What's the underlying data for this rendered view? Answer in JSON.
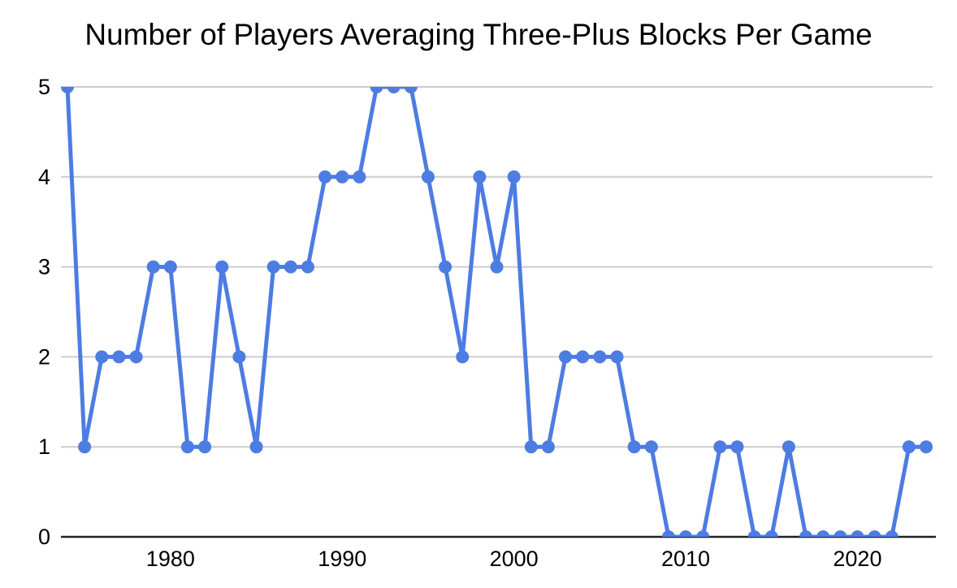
{
  "chart_data": {
    "type": "line",
    "title": "Number of Players Averaging Three-Plus Blocks Per Game",
    "xlabel": "",
    "ylabel": "",
    "x": [
      1974,
      1975,
      1976,
      1977,
      1978,
      1979,
      1980,
      1981,
      1982,
      1983,
      1984,
      1985,
      1986,
      1987,
      1988,
      1989,
      1990,
      1991,
      1992,
      1993,
      1994,
      1995,
      1996,
      1997,
      1998,
      1999,
      2000,
      2001,
      2002,
      2003,
      2004,
      2005,
      2006,
      2007,
      2008,
      2009,
      2010,
      2011,
      2012,
      2013,
      2014,
      2015,
      2016,
      2017,
      2018,
      2019,
      2020,
      2021,
      2022,
      2023,
      2024
    ],
    "values": [
      5,
      1,
      2,
      2,
      2,
      3,
      3,
      1,
      1,
      3,
      2,
      1,
      3,
      3,
      3,
      4,
      4,
      4,
      5,
      5,
      5,
      4,
      3,
      2,
      4,
      3,
      4,
      1,
      1,
      2,
      2,
      2,
      2,
      1,
      1,
      0,
      0,
      0,
      1,
      1,
      0,
      0,
      1,
      0,
      0,
      0,
      0,
      0,
      0,
      1,
      1
    ],
    "ylim": [
      0,
      5
    ],
    "y_ticks": [
      0,
      1,
      2,
      3,
      4,
      5
    ],
    "x_ticks": [
      1980,
      1990,
      2000,
      2010,
      2020
    ],
    "grid": true,
    "legend": false,
    "marker": "circle",
    "line_color": "#4d7ce2",
    "gridline_color": "#cccccc",
    "axis_line_color": "#212121",
    "label_color": "#000000",
    "background": "#ffffff"
  }
}
